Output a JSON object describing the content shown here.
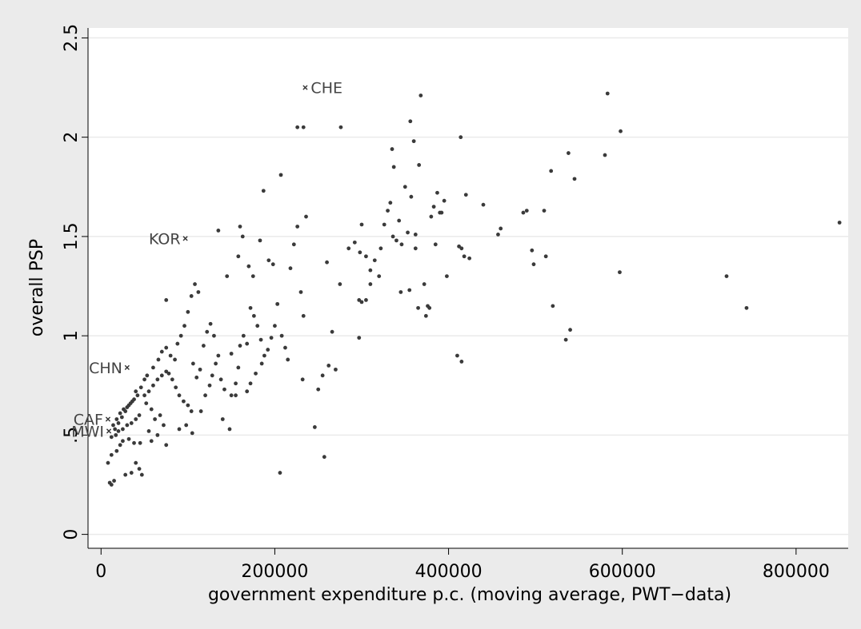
{
  "chart_data": {
    "type": "scatter",
    "title": "",
    "xlabel": "government expenditure p.c. (moving average, PWT−data)",
    "ylabel": "overall PSP",
    "xlim": [
      -15000,
      860000
    ],
    "ylim": [
      -0.07,
      2.55
    ],
    "x_ticks": [
      0,
      200000,
      400000,
      600000,
      800000
    ],
    "y_ticks": [
      0,
      0.5,
      1,
      1.5,
      2,
      2.5
    ],
    "x_tick_labels": [
      "0",
      "200000",
      "400000",
      "600000",
      "800000"
    ],
    "y_tick_labels": [
      "0",
      ".5",
      "1",
      "1.5",
      "2",
      "2.5"
    ],
    "grid": "horizontal",
    "legend": "none",
    "colors": {
      "background": "#ebebeb",
      "plot_background": "#ffffff",
      "marker": "#3a3a3a",
      "gridline": "#eaeaea",
      "label": "#444444"
    },
    "labeled_points": [
      {
        "label": "CHE",
        "x": 235000,
        "y": 2.25
      },
      {
        "label": "KOR",
        "x": 97000,
        "y": 1.49
      },
      {
        "label": "CHN",
        "x": 30000,
        "y": 0.84
      },
      {
        "label": "CAF",
        "x": 8000,
        "y": 0.58
      },
      {
        "label": "MWI",
        "x": 9000,
        "y": 0.52
      }
    ],
    "points": [
      [
        12000,
        0.25
      ],
      [
        10000,
        0.26
      ],
      [
        15000,
        0.27
      ],
      [
        28000,
        0.3
      ],
      [
        35000,
        0.31
      ],
      [
        44000,
        0.33
      ],
      [
        47000,
        0.3
      ],
      [
        40000,
        0.36
      ],
      [
        8000,
        0.36
      ],
      [
        12000,
        0.4
      ],
      [
        18000,
        0.42
      ],
      [
        22000,
        0.45
      ],
      [
        25000,
        0.47
      ],
      [
        32000,
        0.48
      ],
      [
        38000,
        0.46
      ],
      [
        45000,
        0.46
      ],
      [
        12000,
        0.49
      ],
      [
        17000,
        0.5
      ],
      [
        20000,
        0.52
      ],
      [
        25000,
        0.53
      ],
      [
        30000,
        0.55
      ],
      [
        35000,
        0.56
      ],
      [
        40000,
        0.58
      ],
      [
        44000,
        0.6
      ],
      [
        14000,
        0.55
      ],
      [
        18000,
        0.58
      ],
      [
        22000,
        0.61
      ],
      [
        26000,
        0.63
      ],
      [
        30000,
        0.64
      ],
      [
        34000,
        0.66
      ],
      [
        38000,
        0.68
      ],
      [
        42000,
        0.7
      ],
      [
        16000,
        0.53
      ],
      [
        20000,
        0.56
      ],
      [
        24000,
        0.59
      ],
      [
        28000,
        0.62
      ],
      [
        32000,
        0.65
      ],
      [
        36000,
        0.67
      ],
      [
        40000,
        0.72
      ],
      [
        46000,
        0.74
      ],
      [
        50000,
        0.7
      ],
      [
        55000,
        0.72
      ],
      [
        60000,
        0.75
      ],
      [
        65000,
        0.78
      ],
      [
        70000,
        0.8
      ],
      [
        75000,
        0.82
      ],
      [
        52000,
        0.66
      ],
      [
        58000,
        0.63
      ],
      [
        62000,
        0.58
      ],
      [
        68000,
        0.6
      ],
      [
        72000,
        0.55
      ],
      [
        55000,
        0.52
      ],
      [
        58000,
        0.47
      ],
      [
        65000,
        0.5
      ],
      [
        75000,
        0.45
      ],
      [
        50000,
        0.78
      ],
      [
        53000,
        0.8
      ],
      [
        60000,
        0.84
      ],
      [
        66000,
        0.88
      ],
      [
        70000,
        0.92
      ],
      [
        75000,
        0.94
      ],
      [
        80000,
        0.9
      ],
      [
        85000,
        0.88
      ],
      [
        88000,
        0.96
      ],
      [
        92000,
        1.0
      ],
      [
        96000,
        1.05
      ],
      [
        100000,
        1.12
      ],
      [
        104000,
        1.2
      ],
      [
        108000,
        1.26
      ],
      [
        112000,
        1.22
      ],
      [
        78000,
        0.81
      ],
      [
        82000,
        0.78
      ],
      [
        86000,
        0.74
      ],
      [
        90000,
        0.7
      ],
      [
        95000,
        0.67
      ],
      [
        100000,
        0.65
      ],
      [
        104000,
        0.62
      ],
      [
        90000,
        0.53
      ],
      [
        98000,
        0.55
      ],
      [
        105000,
        0.51
      ],
      [
        115000,
        0.62
      ],
      [
        120000,
        0.7
      ],
      [
        125000,
        0.75
      ],
      [
        128000,
        0.8
      ],
      [
        132000,
        0.86
      ],
      [
        118000,
        0.95
      ],
      [
        122000,
        1.02
      ],
      [
        126000,
        1.06
      ],
      [
        130000,
        1.0
      ],
      [
        135000,
        0.9
      ],
      [
        138000,
        0.78
      ],
      [
        142000,
        0.73
      ],
      [
        110000,
        0.79
      ],
      [
        114000,
        0.83
      ],
      [
        106000,
        0.86
      ],
      [
        75000,
        1.18
      ],
      [
        140000,
        0.58
      ],
      [
        148000,
        0.53
      ],
      [
        150000,
        0.7
      ],
      [
        155000,
        0.76
      ],
      [
        158000,
        0.84
      ],
      [
        160000,
        0.95
      ],
      [
        164000,
        1.0
      ],
      [
        168000,
        0.96
      ],
      [
        172000,
        1.14
      ],
      [
        176000,
        1.1
      ],
      [
        180000,
        1.05
      ],
      [
        184000,
        0.98
      ],
      [
        168000,
        0.72
      ],
      [
        172000,
        0.76
      ],
      [
        178000,
        0.81
      ],
      [
        185000,
        0.86
      ],
      [
        188000,
        0.9
      ],
      [
        192000,
        0.93
      ],
      [
        196000,
        0.99
      ],
      [
        200000,
        1.05
      ],
      [
        158000,
        1.4
      ],
      [
        160000,
        1.55
      ],
      [
        163000,
        1.5
      ],
      [
        170000,
        1.35
      ],
      [
        175000,
        1.3
      ],
      [
        183000,
        1.48
      ],
      [
        187000,
        1.73
      ],
      [
        193000,
        1.38
      ],
      [
        198000,
        1.36
      ],
      [
        203000,
        1.16
      ],
      [
        208000,
        1.0
      ],
      [
        212000,
        0.94
      ],
      [
        215000,
        0.88
      ],
      [
        218000,
        1.34
      ],
      [
        222000,
        1.46
      ],
      [
        226000,
        1.55
      ],
      [
        230000,
        1.22
      ],
      [
        233000,
        1.1
      ],
      [
        236000,
        1.6
      ],
      [
        232000,
        0.78
      ],
      [
        150000,
        0.91
      ],
      [
        155000,
        0.7
      ],
      [
        135000,
        1.53
      ],
      [
        145000,
        1.3
      ],
      [
        207000,
        1.81
      ],
      [
        233000,
        2.05
      ],
      [
        276000,
        2.05
      ],
      [
        246000,
        0.54
      ],
      [
        257000,
        0.39
      ],
      [
        206000,
        0.31
      ],
      [
        250000,
        0.73
      ],
      [
        255000,
        0.8
      ],
      [
        262000,
        0.85
      ],
      [
        266000,
        1.02
      ],
      [
        270000,
        0.83
      ],
      [
        260000,
        1.37
      ],
      [
        275000,
        1.26
      ],
      [
        285000,
        1.44
      ],
      [
        292000,
        1.47
      ],
      [
        298000,
        1.42
      ],
      [
        300000,
        1.56
      ],
      [
        305000,
        1.4
      ],
      [
        310000,
        1.33
      ],
      [
        315000,
        1.38
      ],
      [
        320000,
        1.3
      ],
      [
        322000,
        1.44
      ],
      [
        326000,
        1.56
      ],
      [
        330000,
        1.63
      ],
      [
        333000,
        1.67
      ],
      [
        336000,
        1.5
      ],
      [
        340000,
        1.48
      ],
      [
        343000,
        1.58
      ],
      [
        346000,
        1.46
      ],
      [
        350000,
        1.75
      ],
      [
        353000,
        1.52
      ],
      [
        357000,
        1.7
      ],
      [
        360000,
        1.98
      ],
      [
        362000,
        1.44
      ],
      [
        366000,
        1.86
      ],
      [
        368000,
        2.21
      ],
      [
        372000,
        1.26
      ],
      [
        376000,
        1.15
      ],
      [
        378000,
        1.14
      ],
      [
        380000,
        1.6
      ],
      [
        383000,
        1.65
      ],
      [
        387000,
        1.72
      ],
      [
        390000,
        1.62
      ],
      [
        395000,
        1.68
      ],
      [
        398000,
        1.3
      ],
      [
        356000,
        2.08
      ],
      [
        300000,
        1.17
      ],
      [
        305000,
        1.18
      ],
      [
        297000,
        0.99
      ],
      [
        297000,
        1.18
      ],
      [
        310000,
        1.26
      ],
      [
        335000,
        1.94
      ],
      [
        337000,
        1.85
      ],
      [
        345000,
        1.22
      ],
      [
        355000,
        1.23
      ],
      [
        365000,
        1.14
      ],
      [
        374000,
        1.1
      ],
      [
        385000,
        1.46
      ],
      [
        392000,
        1.62
      ],
      [
        362000,
        1.51
      ],
      [
        410000,
        0.9
      ],
      [
        415000,
        0.87
      ],
      [
        412000,
        1.45
      ],
      [
        415000,
        1.44
      ],
      [
        418000,
        1.4
      ],
      [
        424000,
        1.39
      ],
      [
        420000,
        1.71
      ],
      [
        414000,
        2.0
      ],
      [
        440000,
        1.66
      ],
      [
        457000,
        1.51
      ],
      [
        460000,
        1.54
      ],
      [
        486000,
        1.62
      ],
      [
        490000,
        1.63
      ],
      [
        496000,
        1.43
      ],
      [
        498000,
        1.36
      ],
      [
        510000,
        1.63
      ],
      [
        512000,
        1.4
      ],
      [
        518000,
        1.83
      ],
      [
        520000,
        1.15
      ],
      [
        535000,
        0.98
      ],
      [
        540000,
        1.03
      ],
      [
        538000,
        1.92
      ],
      [
        545000,
        1.79
      ],
      [
        580000,
        1.91
      ],
      [
        583000,
        2.22
      ],
      [
        597000,
        1.32
      ],
      [
        598000,
        2.03
      ],
      [
        720000,
        1.3
      ],
      [
        743000,
        1.14
      ],
      [
        850000,
        1.57
      ],
      [
        226000,
        2.05
      ]
    ]
  }
}
